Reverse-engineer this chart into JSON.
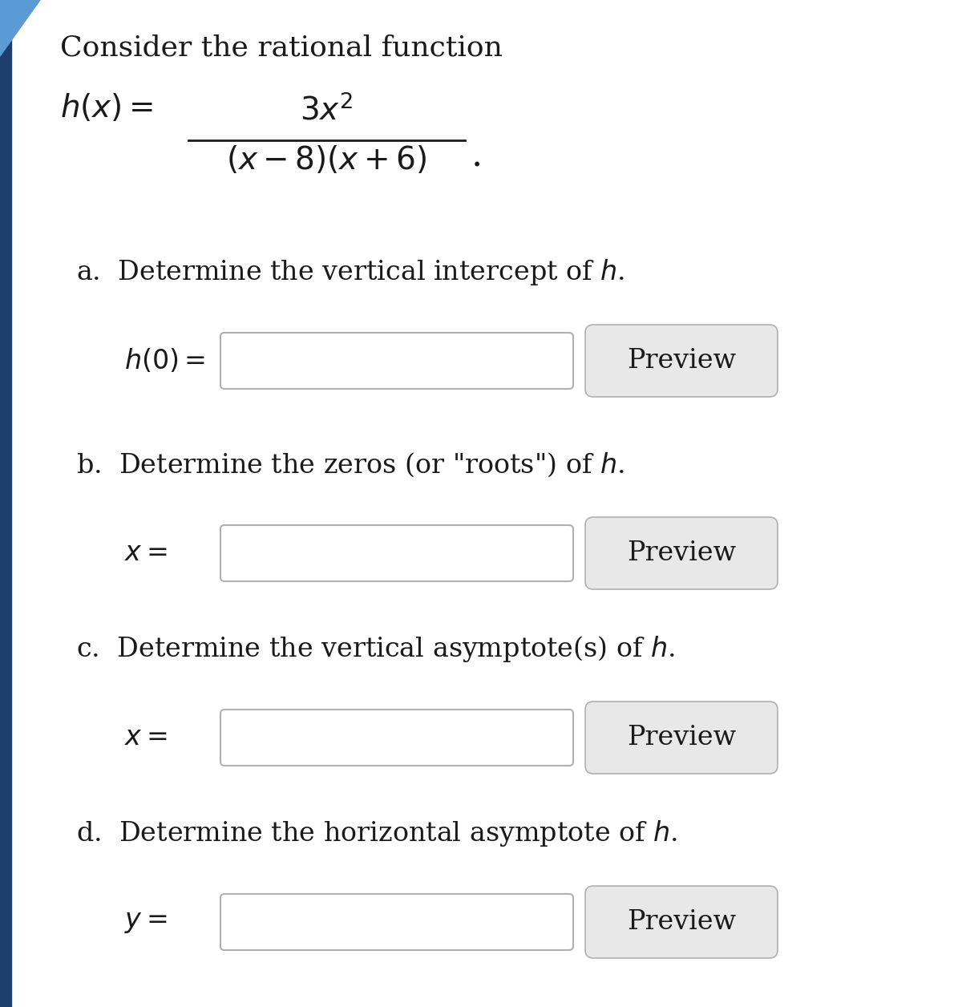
{
  "bg_color": "#ffffff",
  "border_color": "#1c3f6e",
  "triangle_color": "#5b9bd5",
  "text_color": "#1a1a1a",
  "input_box_color": "#ffffff",
  "input_box_edge": "#b0b0b0",
  "preview_box_color": "#e8e8e8",
  "preview_box_edge": "#b0b0b0",
  "title_line": "Consider the rational function",
  "preview_text": "Preview",
  "font_size_title": 26,
  "font_size_function": 28,
  "font_size_part": 24,
  "font_size_input_label": 24,
  "font_size_preview": 24
}
